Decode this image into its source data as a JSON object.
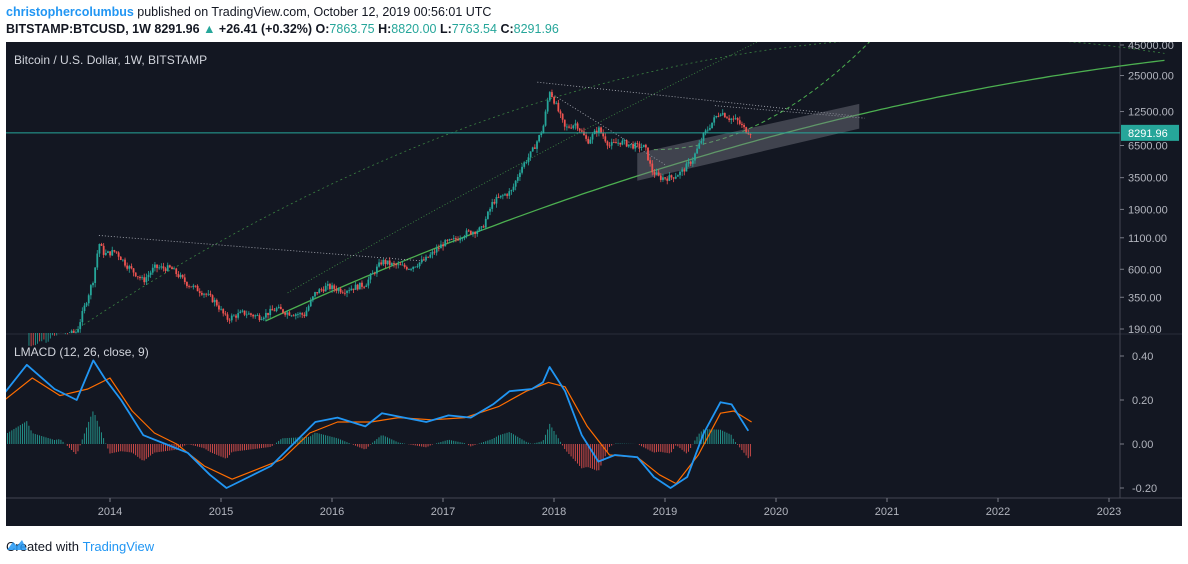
{
  "header": {
    "author": "christophercolumbus",
    "published": "published on TradingView.com, October 12, 2019 00:56:01 UTC",
    "symbol": "BITSTAMP:BTCUSD, 1W",
    "last": "8291.96",
    "change": "+26.41 (+0.32%)",
    "o_label": "O:",
    "o": "7863.75",
    "h_label": "H:",
    "h": "8820.00",
    "l_label": "L:",
    "l": "7763.54",
    "c_label": "C:",
    "c": "8291.96"
  },
  "footer": {
    "created": "Created with",
    "brand": "TradingView"
  },
  "colors": {
    "bg": "#131722",
    "up": "#26a69a",
    "down": "#ef5350",
    "macd": "#2196f3",
    "signal": "#ff6d00",
    "green": "#4caf50",
    "price_line": "#26a69a"
  },
  "chart_data": [
    {
      "type": "candlestick",
      "title": "Bitcoin / U.S. Dollar, 1W, BITSTAMP",
      "scale": "log",
      "y_ticks": [
        "45000.00",
        "25000.00",
        "12500.00",
        "6500.00",
        "3500.00",
        "1900.00",
        "1100.00",
        "600.00",
        "350.00",
        "190.00"
      ],
      "y_tick_values": [
        45000,
        25000,
        12500,
        6500,
        3500,
        1900,
        1100,
        600,
        350,
        190
      ],
      "x_ticks": [
        "2014",
        "2015",
        "2016",
        "2017",
        "2018",
        "2019",
        "2020",
        "2021",
        "2022",
        "2023"
      ],
      "x_tick_values": [
        2014,
        2015,
        2016,
        2017,
        2018,
        2019,
        2020,
        2021,
        2022,
        2023
      ],
      "last_price_label": "8291.96",
      "last_price": 8291.96,
      "approx_price_path": [
        [
          2013.25,
          130
        ],
        [
          2013.7,
          180
        ],
        [
          2013.85,
          500
        ],
        [
          2013.9,
          1000
        ],
        [
          2013.95,
          800
        ],
        [
          2014.05,
          850
        ],
        [
          2014.15,
          650
        ],
        [
          2014.3,
          480
        ],
        [
          2014.4,
          620
        ],
        [
          2014.55,
          610
        ],
        [
          2014.7,
          450
        ],
        [
          2014.85,
          380
        ],
        [
          2014.95,
          320
        ],
        [
          2015.05,
          230
        ],
        [
          2015.2,
          260
        ],
        [
          2015.35,
          240
        ],
        [
          2015.5,
          280
        ],
        [
          2015.6,
          260
        ],
        [
          2015.75,
          250
        ],
        [
          2015.85,
          380
        ],
        [
          2015.95,
          430
        ],
        [
          2016.1,
          400
        ],
        [
          2016.3,
          450
        ],
        [
          2016.45,
          700
        ],
        [
          2016.55,
          650
        ],
        [
          2016.7,
          620
        ],
        [
          2016.85,
          730
        ],
        [
          2017.0,
          980
        ],
        [
          2017.1,
          1050
        ],
        [
          2017.2,
          1200
        ],
        [
          2017.35,
          1300
        ],
        [
          2017.45,
          2200
        ],
        [
          2017.55,
          2500
        ],
        [
          2017.62,
          2700
        ],
        [
          2017.7,
          4200
        ],
        [
          2017.8,
          5700
        ],
        [
          2017.9,
          9000
        ],
        [
          2017.96,
          19000
        ],
        [
          2018.02,
          14000
        ],
        [
          2018.1,
          9000
        ],
        [
          2018.2,
          10000
        ],
        [
          2018.3,
          7000
        ],
        [
          2018.4,
          9000
        ],
        [
          2018.5,
          6500
        ],
        [
          2018.6,
          7000
        ],
        [
          2018.7,
          6500
        ],
        [
          2018.82,
          6300
        ],
        [
          2018.88,
          4000
        ],
        [
          2018.95,
          3500
        ],
        [
          2019.05,
          3500
        ],
        [
          2019.15,
          3900
        ],
        [
          2019.25,
          5000
        ],
        [
          2019.35,
          8000
        ],
        [
          2019.45,
          11000
        ],
        [
          2019.5,
          12500
        ],
        [
          2019.58,
          11000
        ],
        [
          2019.65,
          10500
        ],
        [
          2019.72,
          8800
        ],
        [
          2019.78,
          8292
        ]
      ]
    },
    {
      "type": "line",
      "title": "LMACD (12, 26, close, 9)",
      "y_ticks": [
        "0.40",
        "0.20",
        "0.00",
        "-0.20"
      ],
      "y_tick_values": [
        0.4,
        0.2,
        0.0,
        -0.2
      ],
      "series": [
        {
          "name": "MACD",
          "values": [
            [
              2013.0,
              0.2
            ],
            [
              2013.25,
              0.36
            ],
            [
              2013.5,
              0.25
            ],
            [
              2013.7,
              0.2
            ],
            [
              2013.85,
              0.38
            ],
            [
              2013.95,
              0.3
            ],
            [
              2014.1,
              0.2
            ],
            [
              2014.3,
              0.04
            ],
            [
              2014.5,
              0.0
            ],
            [
              2014.7,
              -0.04
            ],
            [
              2014.9,
              -0.14
            ],
            [
              2015.05,
              -0.2
            ],
            [
              2015.25,
              -0.15
            ],
            [
              2015.45,
              -0.1
            ],
            [
              2015.65,
              0.0
            ],
            [
              2015.85,
              0.1
            ],
            [
              2016.05,
              0.12
            ],
            [
              2016.3,
              0.08
            ],
            [
              2016.45,
              0.14
            ],
            [
              2016.65,
              0.12
            ],
            [
              2016.85,
              0.1
            ],
            [
              2017.05,
              0.13
            ],
            [
              2017.25,
              0.12
            ],
            [
              2017.45,
              0.18
            ],
            [
              2017.6,
              0.24
            ],
            [
              2017.8,
              0.25
            ],
            [
              2017.9,
              0.28
            ],
            [
              2017.96,
              0.35
            ],
            [
              2018.1,
              0.24
            ],
            [
              2018.25,
              0.04
            ],
            [
              2018.4,
              -0.08
            ],
            [
              2018.55,
              -0.05
            ],
            [
              2018.75,
              -0.06
            ],
            [
              2018.9,
              -0.15
            ],
            [
              2019.05,
              -0.2
            ],
            [
              2019.2,
              -0.15
            ],
            [
              2019.35,
              0.05
            ],
            [
              2019.5,
              0.19
            ],
            [
              2019.6,
              0.18
            ],
            [
              2019.75,
              0.06
            ]
          ]
        },
        {
          "name": "Signal",
          "values": [
            [
              2013.0,
              0.18
            ],
            [
              2013.3,
              0.3
            ],
            [
              2013.55,
              0.22
            ],
            [
              2013.8,
              0.25
            ],
            [
              2014.0,
              0.3
            ],
            [
              2014.2,
              0.15
            ],
            [
              2014.4,
              0.05
            ],
            [
              2014.6,
              0.0
            ],
            [
              2014.85,
              -0.1
            ],
            [
              2015.1,
              -0.16
            ],
            [
              2015.3,
              -0.12
            ],
            [
              2015.55,
              -0.07
            ],
            [
              2015.8,
              0.05
            ],
            [
              2016.05,
              0.1
            ],
            [
              2016.35,
              0.1
            ],
            [
              2016.6,
              0.12
            ],
            [
              2016.9,
              0.11
            ],
            [
              2017.2,
              0.12
            ],
            [
              2017.5,
              0.17
            ],
            [
              2017.75,
              0.24
            ],
            [
              2017.95,
              0.28
            ],
            [
              2018.1,
              0.26
            ],
            [
              2018.3,
              0.08
            ],
            [
              2018.5,
              -0.05
            ],
            [
              2018.75,
              -0.06
            ],
            [
              2018.95,
              -0.14
            ],
            [
              2019.1,
              -0.18
            ],
            [
              2019.3,
              -0.05
            ],
            [
              2019.5,
              0.14
            ],
            [
              2019.62,
              0.15
            ],
            [
              2019.78,
              0.1
            ]
          ]
        }
      ]
    }
  ]
}
